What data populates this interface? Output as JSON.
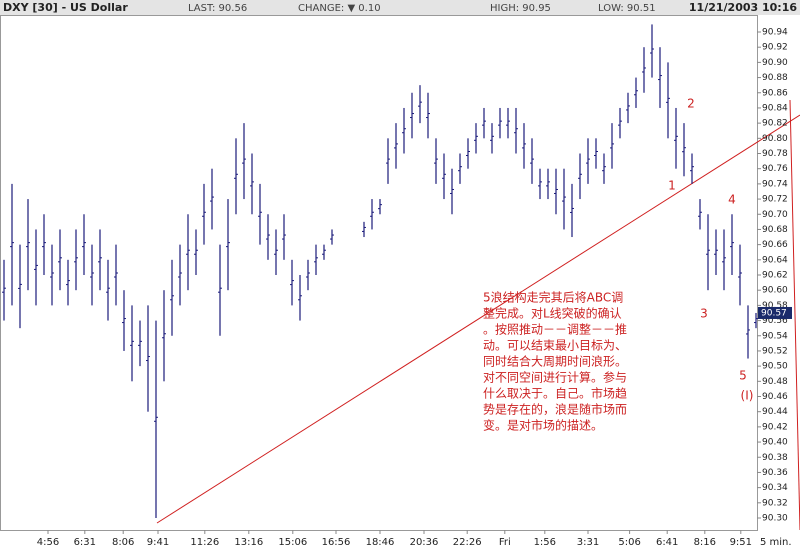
{
  "header": {
    "symbol": "DXY [30] - US Dollar",
    "last": "LAST: 90.56",
    "change": "CHANGE: ▼ 0.10",
    "high": "HIGH: 90.95",
    "low": "LOW: 90.51",
    "datetime": "11/21/2003 10:16"
  },
  "chart_data": {
    "type": "hilo",
    "color": "#1a1a7a",
    "low": [
      90.56,
      90.58,
      90.55,
      90.6,
      90.58,
      90.62,
      90.58,
      90.6,
      90.58,
      90.6,
      90.62,
      90.58,
      90.6,
      90.56,
      90.58,
      90.52,
      90.48,
      90.5,
      90.44,
      90.3,
      90.48,
      90.54,
      90.58,
      90.6,
      90.62,
      90.66,
      90.68,
      90.54,
      90.6,
      90.7,
      90.72,
      90.7,
      90.66,
      90.64,
      90.62,
      90.64,
      90.58,
      90.56,
      90.6,
      90.62,
      90.64,
      90.66,
      null,
      null,
      null,
      90.67,
      90.68,
      90.7,
      90.74,
      90.76,
      90.78,
      90.8,
      90.82,
      90.8,
      90.74,
      90.72,
      90.7,
      90.74,
      90.76,
      90.78,
      90.8,
      90.78,
      90.8,
      90.8,
      90.78,
      90.76,
      90.74,
      90.72,
      90.72,
      90.7,
      90.68,
      90.67,
      90.72,
      90.74,
      90.76,
      90.74,
      90.76,
      90.8,
      90.82,
      90.84,
      90.86,
      90.88,
      90.84,
      90.8,
      90.76,
      90.75,
      90.74,
      90.68,
      90.6,
      90.62,
      90.6,
      90.62,
      90.58,
      90.51,
      90.55
    ],
    "high": [
      90.64,
      90.74,
      90.66,
      90.72,
      90.68,
      90.7,
      90.66,
      90.68,
      90.64,
      90.68,
      90.7,
      90.66,
      90.68,
      90.64,
      90.66,
      90.6,
      90.58,
      90.56,
      90.58,
      90.56,
      90.6,
      90.64,
      90.66,
      90.7,
      90.68,
      90.74,
      90.76,
      90.66,
      90.72,
      90.8,
      90.82,
      90.78,
      90.74,
      90.7,
      90.68,
      90.7,
      90.64,
      90.62,
      90.64,
      90.66,
      90.66,
      90.68,
      null,
      null,
      null,
      90.69,
      90.72,
      90.72,
      90.8,
      90.82,
      90.84,
      90.86,
      90.87,
      90.86,
      90.8,
      90.78,
      90.76,
      90.78,
      90.8,
      90.82,
      90.84,
      90.82,
      90.84,
      90.84,
      90.84,
      90.82,
      90.8,
      90.76,
      90.76,
      90.76,
      90.76,
      90.74,
      90.78,
      90.8,
      90.8,
      90.78,
      90.82,
      90.84,
      90.86,
      90.88,
      90.92,
      90.95,
      90.92,
      90.9,
      90.84,
      90.82,
      90.78,
      90.72,
      90.7,
      90.68,
      90.68,
      90.7,
      90.66,
      90.58,
      90.57
    ],
    "xlim": [
      -0.5,
      94.125
    ],
    "xticks": [
      {
        "value": 5.5,
        "label": "4:56"
      },
      {
        "value": 10.1,
        "label": "6:31"
      },
      {
        "value": 14.9,
        "label": "8:06"
      },
      {
        "value": 19.25,
        "label": "9:41"
      },
      {
        "value": 25.1,
        "label": "11:26"
      },
      {
        "value": 30.6,
        "label": "13:16"
      },
      {
        "value": 36.1,
        "label": "15:06"
      },
      {
        "value": 41.5,
        "label": "16:56"
      },
      {
        "value": 47,
        "label": "18:46"
      },
      {
        "value": 52.5,
        "label": "20:36"
      },
      {
        "value": 57.9,
        "label": "22:26"
      },
      {
        "value": 62.6,
        "label": "Fri"
      },
      {
        "value": 67.6,
        "label": "1:56"
      },
      {
        "value": 73,
        "label": "3:31"
      },
      {
        "value": 78.2,
        "label": "5:06"
      },
      {
        "value": 82.9,
        "label": "6:41"
      },
      {
        "value": 87.6,
        "label": "8:16"
      },
      {
        "value": 92.1,
        "label": "9:51"
      }
    ],
    "x_unit": "5 min.",
    "ylim": [
      90.2842,
      90.9624
    ],
    "yticks": [
      {
        "value": 90.3,
        "label": "90.30"
      },
      90.32,
      90.34,
      90.36,
      90.38,
      {
        "value": 90.4,
        "label": "90.40"
      },
      90.42,
      90.44,
      90.46,
      90.48,
      {
        "value": 90.5,
        "label": "90.50"
      },
      90.52,
      90.54,
      90.56,
      90.58,
      {
        "value": 90.6,
        "label": "90.60"
      },
      90.62,
      90.64,
      90.66,
      90.68,
      {
        "value": 90.7,
        "label": "90.70"
      },
      90.72,
      90.74,
      90.76,
      90.78,
      {
        "value": 90.8,
        "label": "90.80"
      },
      90.82,
      90.84,
      90.86,
      90.88,
      {
        "value": 90.9,
        "label": "90.90"
      },
      90.92,
      90.94
    ],
    "last_marker": 90.57,
    "wave_labels": [
      "1",
      "2",
      "3",
      "4",
      "5",
      "(I)"
    ],
    "note": [
      "5浪结构走完其后将ABC调",
      "整完成。对L线突破的确认",
      "。按照推动－－调整－－推",
      "动。可以结束最小目标为、",
      "同时结合大周期时间浪形。",
      "对不同空间进行计算。参与",
      "什么取决于。自己。市场趋",
      "势是存在的，浪是随市场而",
      "变。是对市场的描述。"
    ]
  }
}
